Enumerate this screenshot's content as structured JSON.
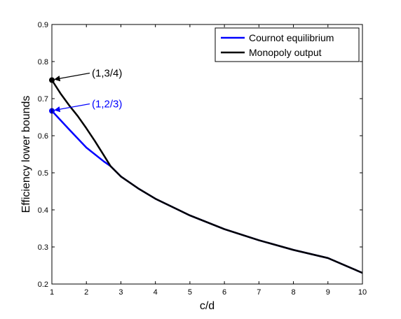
{
  "chart_data": {
    "type": "line",
    "xlabel": "c/d",
    "ylabel": "Efficiency lower bounds",
    "xlim": [
      1,
      10
    ],
    "ylim": [
      0.2,
      0.9
    ],
    "xticks": [
      "1",
      "2",
      "3",
      "4",
      "5",
      "6",
      "7",
      "8",
      "9",
      "10"
    ],
    "yticks": [
      "0.2",
      "0.3",
      "0.4",
      "0.5",
      "0.6",
      "0.7",
      "0.8",
      "0.9"
    ],
    "grid": false,
    "legend_position": "top-right",
    "series": [
      {
        "name": "Cournot equilibrium",
        "color": "#0000ff",
        "x": [
          1,
          1.5,
          2,
          2.5,
          2.7,
          3,
          3.5,
          4,
          5,
          6,
          7,
          8,
          9,
          10
        ],
        "y": [
          0.667,
          0.617,
          0.568,
          0.531,
          0.518,
          0.49,
          0.458,
          0.43,
          0.385,
          0.348,
          0.318,
          0.292,
          0.27,
          0.23
        ]
      },
      {
        "name": "Monopoly output",
        "color": "#000000",
        "x": [
          1,
          1.25,
          1.5,
          1.75,
          2,
          2.25,
          2.5,
          2.7,
          3,
          3.5,
          4,
          5,
          6,
          7,
          8,
          9,
          10
        ],
        "y": [
          0.75,
          0.714,
          0.682,
          0.653,
          0.62,
          0.585,
          0.548,
          0.518,
          0.49,
          0.458,
          0.43,
          0.385,
          0.348,
          0.318,
          0.292,
          0.27,
          0.23
        ]
      }
    ],
    "annotations": [
      {
        "text": "(1,3/4)",
        "x": 1,
        "y": 0.75,
        "color": "#000000"
      },
      {
        "text": "(1,2/3)",
        "x": 1,
        "y": 0.667,
        "color": "#0000ff"
      }
    ]
  }
}
